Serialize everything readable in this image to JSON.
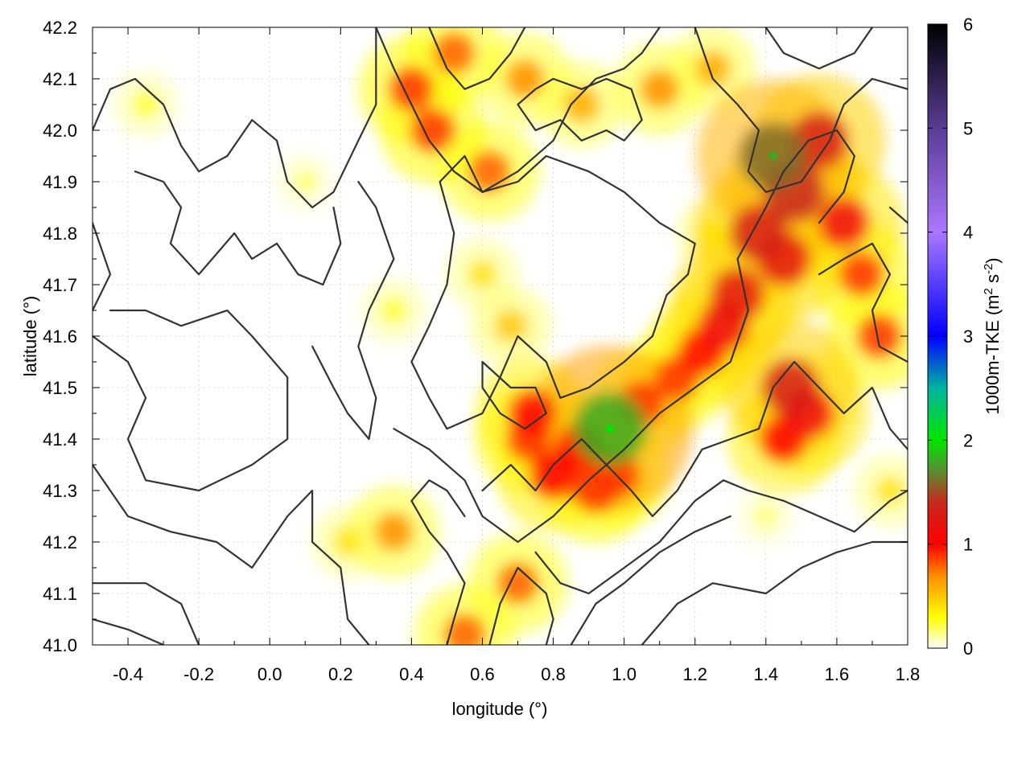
{
  "chart_data": {
    "type": "heatmap",
    "title": "",
    "xlabel": "longitude (°)",
    "ylabel": "latitude (°)",
    "xlim": [
      -0.5,
      1.8
    ],
    "ylim": [
      41.0,
      42.2
    ],
    "x_ticks": [
      -0.4,
      -0.2,
      0.0,
      0.2,
      0.4,
      0.6,
      0.8,
      1.0,
      1.2,
      1.4,
      1.6,
      1.8
    ],
    "x_tick_labels": [
      "-0.4",
      "-0.2",
      "0.0",
      "0.2",
      "0.4",
      "0.6",
      "0.8",
      "1.0",
      "1.2",
      "1.4",
      "1.6",
      "1.8"
    ],
    "y_ticks": [
      41.0,
      41.1,
      41.2,
      41.3,
      41.4,
      41.5,
      41.6,
      41.7,
      41.8,
      41.9,
      42.0,
      42.1,
      42.2
    ],
    "y_tick_labels": [
      "41.0",
      "41.1",
      "41.2",
      "41.3",
      "41.4",
      "41.5",
      "41.6",
      "41.7",
      "41.8",
      "41.9",
      "42.0",
      "42.1",
      "42.2"
    ],
    "grid": true,
    "colorbar": {
      "label": "1000m-TKE (m² s⁻²)",
      "label_base": "1000m-TKE (m",
      "label_sup1": "2",
      "label_mid": " s",
      "label_sup2": "-2",
      "label_end": ")",
      "range": [
        0,
        6
      ],
      "ticks": [
        0,
        1,
        2,
        3,
        4,
        5,
        6
      ],
      "tick_labels": [
        "0",
        "1",
        "2",
        "3",
        "4",
        "5",
        "6"
      ],
      "color_stops": [
        {
          "value": 0.0,
          "color": "#ffffff"
        },
        {
          "value": 0.3,
          "color": "#ffff00"
        },
        {
          "value": 0.7,
          "color": "#ff8c00"
        },
        {
          "value": 1.0,
          "color": "#ff0000"
        },
        {
          "value": 1.4,
          "color": "#c8281e"
        },
        {
          "value": 1.7,
          "color": "#5a8c32"
        },
        {
          "value": 2.0,
          "color": "#00e600"
        },
        {
          "value": 2.5,
          "color": "#00b4a0"
        },
        {
          "value": 3.0,
          "color": "#0000ff"
        },
        {
          "value": 4.0,
          "color": "#aa78ff"
        },
        {
          "value": 5.0,
          "color": "#5a3c96"
        },
        {
          "value": 6.0,
          "color": "#000000"
        }
      ]
    },
    "hotspots": [
      {
        "lon": 1.42,
        "lat": 41.95,
        "value": 1.6
      },
      {
        "lon": 1.48,
        "lat": 41.88,
        "value": 1.4
      },
      {
        "lon": 1.55,
        "lat": 41.98,
        "value": 1.3
      },
      {
        "lon": 1.38,
        "lat": 41.8,
        "value": 1.3
      },
      {
        "lon": 1.45,
        "lat": 41.75,
        "value": 1.2
      },
      {
        "lon": 1.32,
        "lat": 41.68,
        "value": 1.2
      },
      {
        "lon": 1.28,
        "lat": 41.62,
        "value": 1.1
      },
      {
        "lon": 1.22,
        "lat": 41.57,
        "value": 1.0
      },
      {
        "lon": 1.15,
        "lat": 41.52,
        "value": 0.9
      },
      {
        "lon": 1.05,
        "lat": 41.47,
        "value": 0.9
      },
      {
        "lon": 0.96,
        "lat": 41.42,
        "value": 1.8
      },
      {
        "lon": 0.87,
        "lat": 41.38,
        "value": 1.0
      },
      {
        "lon": 0.8,
        "lat": 41.33,
        "value": 1.0
      },
      {
        "lon": 0.74,
        "lat": 41.45,
        "value": 1.0
      },
      {
        "lon": 0.73,
        "lat": 41.4,
        "value": 0.9
      },
      {
        "lon": 0.92,
        "lat": 41.3,
        "value": 0.9
      },
      {
        "lon": 0.98,
        "lat": 41.33,
        "value": 0.9
      },
      {
        "lon": 1.47,
        "lat": 41.5,
        "value": 1.3
      },
      {
        "lon": 1.52,
        "lat": 41.45,
        "value": 1.1
      },
      {
        "lon": 1.45,
        "lat": 41.4,
        "value": 1.0
      },
      {
        "lon": 1.62,
        "lat": 41.82,
        "value": 1.1
      },
      {
        "lon": 1.67,
        "lat": 41.72,
        "value": 0.9
      },
      {
        "lon": 1.72,
        "lat": 41.6,
        "value": 0.9
      },
      {
        "lon": 0.4,
        "lat": 42.08,
        "value": 0.9
      },
      {
        "lon": 0.46,
        "lat": 42.0,
        "value": 0.9
      },
      {
        "lon": 0.52,
        "lat": 42.15,
        "value": 0.8
      },
      {
        "lon": 0.62,
        "lat": 41.92,
        "value": 0.8
      },
      {
        "lon": 0.72,
        "lat": 42.1,
        "value": 0.7
      },
      {
        "lon": 0.88,
        "lat": 42.05,
        "value": 0.6
      },
      {
        "lon": 1.1,
        "lat": 42.08,
        "value": 0.7
      },
      {
        "lon": 1.25,
        "lat": 42.12,
        "value": 0.6
      },
      {
        "lon": 0.68,
        "lat": 41.62,
        "value": 0.5
      },
      {
        "lon": 0.6,
        "lat": 41.72,
        "value": 0.4
      },
      {
        "lon": 0.35,
        "lat": 41.22,
        "value": 0.7
      },
      {
        "lon": 0.55,
        "lat": 41.02,
        "value": 0.8
      },
      {
        "lon": 0.7,
        "lat": 41.12,
        "value": 0.8
      },
      {
        "lon": 0.22,
        "lat": 41.2,
        "value": 0.4
      },
      {
        "lon": 0.35,
        "lat": 41.65,
        "value": 0.3
      },
      {
        "lon": -0.35,
        "lat": 42.05,
        "value": 0.3
      },
      {
        "lon": 0.1,
        "lat": 41.9,
        "value": 0.2
      },
      {
        "lon": 1.25,
        "lat": 41.8,
        "value": 0.4
      },
      {
        "lon": 1.75,
        "lat": 41.3,
        "value": 0.4
      },
      {
        "lon": 1.4,
        "lat": 41.25,
        "value": 0.2
      }
    ],
    "contours": [
      [
        [
          -0.5,
          42.0
        ],
        [
          -0.45,
          42.08
        ],
        [
          -0.38,
          42.1
        ],
        [
          -0.3,
          42.05
        ],
        [
          -0.25,
          41.97
        ],
        [
          -0.2,
          41.92
        ],
        [
          -0.12,
          41.95
        ],
        [
          -0.05,
          42.02
        ],
        [
          0.02,
          41.98
        ],
        [
          0.05,
          41.9
        ],
        [
          0.12,
          41.85
        ],
        [
          0.18,
          41.88
        ],
        [
          0.25,
          41.98
        ],
        [
          0.3,
          42.05
        ],
        [
          0.3,
          42.2
        ]
      ],
      [
        [
          -0.38,
          41.92
        ],
        [
          -0.3,
          41.9
        ],
        [
          -0.25,
          41.85
        ],
        [
          -0.28,
          41.78
        ],
        [
          -0.2,
          41.72
        ],
        [
          -0.1,
          41.8
        ],
        [
          -0.05,
          41.75
        ],
        [
          0.02,
          41.78
        ],
        [
          0.08,
          41.72
        ],
        [
          0.15,
          41.7
        ],
        [
          0.2,
          41.78
        ],
        [
          0.18,
          41.85
        ]
      ],
      [
        [
          -0.5,
          41.82
        ],
        [
          -0.45,
          41.72
        ],
        [
          -0.5,
          41.65
        ]
      ],
      [
        [
          -0.5,
          41.6
        ],
        [
          -0.4,
          41.55
        ],
        [
          -0.35,
          41.48
        ],
        [
          -0.4,
          41.4
        ],
        [
          -0.35,
          41.32
        ],
        [
          -0.2,
          41.3
        ],
        [
          -0.05,
          41.35
        ],
        [
          0.05,
          41.4
        ],
        [
          0.05,
          41.52
        ],
        [
          -0.05,
          41.6
        ],
        [
          -0.12,
          41.65
        ],
        [
          -0.25,
          41.62
        ],
        [
          -0.35,
          41.65
        ],
        [
          -0.45,
          41.65
        ]
      ],
      [
        [
          -0.5,
          41.35
        ],
        [
          -0.4,
          41.25
        ],
        [
          -0.28,
          41.22
        ],
        [
          -0.15,
          41.2
        ],
        [
          -0.05,
          41.15
        ],
        [
          0.05,
          41.25
        ],
        [
          0.12,
          41.3
        ],
        [
          0.12,
          41.2
        ],
        [
          0.2,
          41.15
        ],
        [
          0.22,
          41.05
        ],
        [
          0.28,
          41.0
        ]
      ],
      [
        [
          -0.5,
          41.12
        ],
        [
          -0.35,
          41.12
        ],
        [
          -0.25,
          41.08
        ],
        [
          -0.2,
          41.0
        ]
      ],
      [
        [
          -0.5,
          41.05
        ],
        [
          -0.4,
          41.03
        ],
        [
          -0.3,
          41.0
        ]
      ],
      [
        [
          0.12,
          41.58
        ],
        [
          0.18,
          41.5
        ],
        [
          0.22,
          41.45
        ],
        [
          0.28,
          41.4
        ],
        [
          0.3,
          41.48
        ],
        [
          0.25,
          41.58
        ],
        [
          0.28,
          41.65
        ],
        [
          0.35,
          41.75
        ],
        [
          0.3,
          41.85
        ],
        [
          0.25,
          41.9
        ]
      ],
      [
        [
          0.4,
          41.55
        ],
        [
          0.45,
          41.62
        ],
        [
          0.5,
          41.7
        ],
        [
          0.52,
          41.8
        ],
        [
          0.48,
          41.9
        ],
        [
          0.55,
          41.95
        ],
        [
          0.6,
          41.88
        ],
        [
          0.7,
          41.9
        ],
        [
          0.78,
          41.95
        ],
        [
          0.9,
          41.92
        ],
        [
          1.0,
          41.88
        ],
        [
          1.1,
          41.82
        ],
        [
          1.2,
          41.78
        ],
        [
          1.18,
          41.72
        ],
        [
          1.12,
          41.68
        ],
        [
          1.08,
          41.6
        ],
        [
          1.0,
          41.55
        ],
        [
          0.9,
          41.5
        ],
        [
          0.82,
          41.48
        ],
        [
          0.78,
          41.55
        ],
        [
          0.7,
          41.6
        ],
        [
          0.65,
          41.52
        ],
        [
          0.6,
          41.45
        ],
        [
          0.5,
          41.42
        ],
        [
          0.45,
          41.48
        ],
        [
          0.4,
          41.55
        ]
      ],
      [
        [
          0.35,
          41.42
        ],
        [
          0.45,
          41.38
        ],
        [
          0.55,
          41.32
        ],
        [
          0.6,
          41.25
        ],
        [
          0.7,
          41.2
        ],
        [
          0.8,
          41.25
        ],
        [
          0.9,
          41.32
        ],
        [
          1.0,
          41.38
        ],
        [
          1.1,
          41.45
        ],
        [
          1.2,
          41.5
        ],
        [
          1.3,
          41.55
        ],
        [
          1.35,
          41.65
        ],
        [
          1.32,
          41.75
        ],
        [
          1.4,
          41.85
        ],
        [
          1.45,
          41.92
        ],
        [
          1.52,
          41.98
        ],
        [
          1.6,
          42.0
        ],
        [
          1.65,
          41.95
        ],
        [
          1.62,
          41.88
        ],
        [
          1.55,
          41.82
        ]
      ],
      [
        [
          0.6,
          41.3
        ],
        [
          0.68,
          41.35
        ],
        [
          0.75,
          41.3
        ],
        [
          0.8,
          41.35
        ],
        [
          0.88,
          41.4
        ],
        [
          0.95,
          41.35
        ],
        [
          1.02,
          41.3
        ],
        [
          1.08,
          41.25
        ],
        [
          1.15,
          41.3
        ],
        [
          1.22,
          41.38
        ],
        [
          1.3,
          41.4
        ],
        [
          1.38,
          41.42
        ],
        [
          1.42,
          41.5
        ],
        [
          1.48,
          41.55
        ],
        [
          1.55,
          41.5
        ],
        [
          1.62,
          41.45
        ],
        [
          1.7,
          41.5
        ],
        [
          1.75,
          41.42
        ],
        [
          1.8,
          41.38
        ]
      ],
      [
        [
          0.75,
          41.18
        ],
        [
          0.82,
          41.12
        ],
        [
          0.9,
          41.1
        ],
        [
          1.0,
          41.15
        ],
        [
          1.1,
          41.2
        ],
        [
          1.2,
          41.28
        ],
        [
          1.28,
          41.32
        ],
        [
          1.35,
          41.3
        ],
        [
          1.45,
          41.28
        ],
        [
          1.55,
          41.25
        ],
        [
          1.65,
          41.22
        ],
        [
          1.75,
          41.28
        ],
        [
          1.8,
          41.3
        ]
      ],
      [
        [
          0.85,
          41.0
        ],
        [
          0.92,
          41.08
        ],
        [
          1.0,
          41.12
        ],
        [
          1.1,
          41.18
        ],
        [
          1.2,
          41.22
        ],
        [
          1.3,
          41.25
        ]
      ],
      [
        [
          1.05,
          41.0
        ],
        [
          1.15,
          41.08
        ],
        [
          1.25,
          41.12
        ],
        [
          1.4,
          41.1
        ],
        [
          1.5,
          41.15
        ],
        [
          1.6,
          41.18
        ],
        [
          1.7,
          41.2
        ],
        [
          1.8,
          41.2
        ]
      ],
      [
        [
          0.62,
          41.0
        ],
        [
          0.65,
          41.08
        ],
        [
          0.7,
          41.15
        ],
        [
          0.78,
          41.1
        ],
        [
          0.8,
          41.05
        ],
        [
          0.78,
          41.0
        ]
      ],
      [
        [
          0.5,
          41.0
        ],
        [
          0.52,
          41.05
        ],
        [
          0.55,
          41.12
        ],
        [
          0.5,
          41.18
        ],
        [
          0.45,
          41.22
        ],
        [
          0.4,
          41.28
        ],
        [
          0.45,
          41.32
        ],
        [
          0.5,
          41.3
        ],
        [
          0.55,
          41.25
        ]
      ],
      [
        [
          0.3,
          42.2
        ],
        [
          0.35,
          42.12
        ],
        [
          0.4,
          42.05
        ],
        [
          0.45,
          41.98
        ],
        [
          0.52,
          41.92
        ],
        [
          0.6,
          41.88
        ],
        [
          0.7,
          41.92
        ],
        [
          0.8,
          41.98
        ],
        [
          0.85,
          42.05
        ],
        [
          0.92,
          42.1
        ],
        [
          1.0,
          42.12
        ],
        [
          1.05,
          42.15
        ],
        [
          1.1,
          42.2
        ]
      ],
      [
        [
          0.45,
          42.2
        ],
        [
          0.5,
          42.12
        ],
        [
          0.55,
          42.08
        ],
        [
          0.62,
          42.1
        ],
        [
          0.68,
          42.15
        ],
        [
          0.72,
          42.2
        ]
      ],
      [
        [
          0.7,
          42.05
        ],
        [
          0.75,
          42.0
        ],
        [
          0.82,
          42.02
        ],
        [
          0.88,
          41.98
        ],
        [
          0.95,
          42.0
        ],
        [
          1.0,
          41.98
        ],
        [
          1.05,
          42.02
        ],
        [
          1.02,
          42.08
        ],
        [
          0.95,
          42.1
        ],
        [
          0.88,
          42.08
        ],
        [
          0.8,
          42.1
        ],
        [
          0.75,
          42.08
        ],
        [
          0.7,
          42.05
        ]
      ],
      [
        [
          1.2,
          42.2
        ],
        [
          1.25,
          42.1
        ],
        [
          1.32,
          42.05
        ],
        [
          1.38,
          42.0
        ],
        [
          1.35,
          41.92
        ],
        [
          1.4,
          41.88
        ],
        [
          1.5,
          41.9
        ],
        [
          1.58,
          41.98
        ],
        [
          1.62,
          42.05
        ],
        [
          1.7,
          42.1
        ],
        [
          1.8,
          42.08
        ]
      ],
      [
        [
          1.4,
          42.2
        ],
        [
          1.45,
          42.15
        ],
        [
          1.55,
          42.12
        ],
        [
          1.65,
          42.15
        ],
        [
          1.7,
          42.2
        ]
      ],
      [
        [
          1.55,
          41.72
        ],
        [
          1.62,
          41.75
        ],
        [
          1.7,
          41.78
        ],
        [
          1.75,
          41.72
        ],
        [
          1.7,
          41.65
        ],
        [
          1.72,
          41.58
        ],
        [
          1.8,
          41.55
        ]
      ],
      [
        [
          1.75,
          41.85
        ],
        [
          1.8,
          41.82
        ]
      ],
      [
        [
          0.6,
          41.55
        ],
        [
          0.68,
          41.5
        ],
        [
          0.75,
          41.5
        ],
        [
          0.78,
          41.45
        ],
        [
          0.72,
          41.42
        ],
        [
          0.65,
          41.45
        ],
        [
          0.6,
          41.5
        ],
        [
          0.6,
          41.55
        ]
      ]
    ]
  }
}
